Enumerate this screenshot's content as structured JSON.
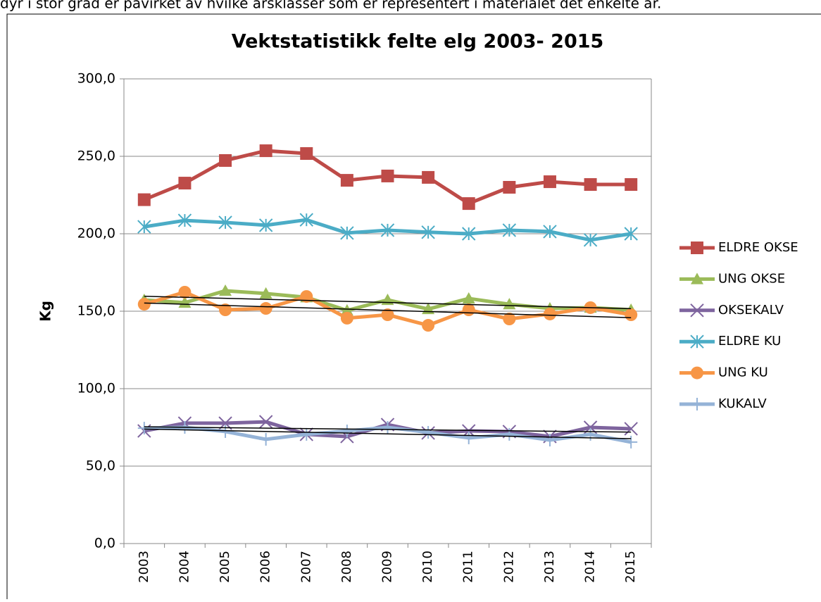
{
  "document": {
    "text": "dyr i stor grad er påvirket av hvilke årsklasser som er representert i materialet det enkelte år."
  },
  "chart_data": {
    "type": "line",
    "title": "Vektstatistikk felte elg 2003- 2015",
    "y_label": "Kg",
    "categories": [
      "2003",
      "2004",
      "2005",
      "2006",
      "2007",
      "2008",
      "2009",
      "2010",
      "2011",
      "2012",
      "2013",
      "2014",
      "2015"
    ],
    "ylim": [
      0,
      300
    ],
    "yticks": [
      {
        "value": 0,
        "label": "0,0"
      },
      {
        "value": 50,
        "label": "50,0"
      },
      {
        "value": 100,
        "label": "100,0"
      },
      {
        "value": 150,
        "label": "150,0"
      },
      {
        "value": 200,
        "label": "200,0"
      },
      {
        "value": 250,
        "label": "250,0"
      },
      {
        "value": 300,
        "label": "300,0"
      }
    ],
    "grid": true,
    "legend": "right",
    "series": [
      {
        "name": "ELDRE OKSE",
        "color": "#be4b48",
        "marker": "square",
        "trendline": false,
        "values": [
          222,
          232.7,
          247.3,
          253.6,
          251.8,
          234.5,
          237.3,
          236.4,
          219.5,
          230,
          233.6,
          231.8,
          231.8
        ]
      },
      {
        "name": "UNG OKSE",
        "color": "#9bbb59",
        "marker": "triangle",
        "trendline": true,
        "values": [
          157.3,
          155.5,
          163.2,
          161.4,
          159,
          150.5,
          157.3,
          151.4,
          158.2,
          154.5,
          151.8,
          152.3,
          150.9
        ]
      },
      {
        "name": "OKSEKALV",
        "color": "#7e649e",
        "marker": "x",
        "trendline": true,
        "values": [
          72.7,
          77.7,
          77.7,
          78.6,
          70.5,
          69.1,
          76.8,
          71.4,
          72.7,
          72.3,
          69.1,
          75,
          74.1
        ]
      },
      {
        "name": "ELDRE KU",
        "color": "#4bacc6",
        "marker": "star",
        "trendline": false,
        "values": [
          204.5,
          208.6,
          207.3,
          205.5,
          209,
          200.5,
          202.3,
          201,
          200,
          202.3,
          201.4,
          196,
          200
        ]
      },
      {
        "name": "UNG KU",
        "color": "#f79646",
        "marker": "circle",
        "trendline": true,
        "values": [
          154.5,
          162.3,
          150.9,
          151.8,
          159.5,
          145.5,
          147.7,
          140.9,
          150.9,
          145,
          148.2,
          152.3,
          147.7
        ]
      },
      {
        "name": "KUKALV",
        "color": "#95b3d7",
        "marker": "plus",
        "trendline": true,
        "values": [
          74.5,
          75,
          72.3,
          67.3,
          70.5,
          72.7,
          75,
          71.8,
          68.2,
          70.5,
          66.8,
          70.5,
          65.5
        ]
      }
    ]
  }
}
